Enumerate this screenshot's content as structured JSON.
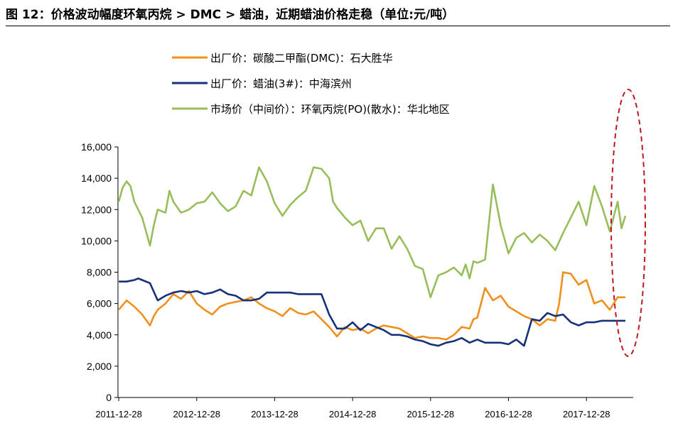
{
  "figure": {
    "title": "图 12：价格波动幅度环氧丙烷 > DMC > 蜡油，近期蜡油价格走稳（单位:元/吨）"
  },
  "colors": {
    "dmc": "#F0901C",
    "wax": "#17307A",
    "po": "#97BE5A",
    "highlight": "#C0181E"
  },
  "chart_data": {
    "type": "line",
    "title": "",
    "xlabel": "",
    "ylabel": "",
    "ylim": [
      0,
      16000
    ],
    "yticks": [
      0,
      2000,
      4000,
      6000,
      8000,
      10000,
      12000,
      14000,
      16000
    ],
    "ytick_labels": [
      "0",
      "2,000",
      "4,000",
      "6,000",
      "8,000",
      "10,000",
      "12,000",
      "14,000",
      "16,000"
    ],
    "xlim": [
      2011.99,
      2018.6
    ],
    "xticks": [
      2012,
      2013,
      2014,
      2015,
      2016,
      2017,
      2018
    ],
    "xtick_labels": [
      "2011-12-28",
      "2012-12-28",
      "2013-12-28",
      "2014-12-28",
      "2015-12-28",
      "2016-12-28",
      "2017-12-28"
    ],
    "legend_position": "top-left",
    "series": [
      {
        "key": "dmc",
        "name": "出厂价：碳酸二甲酯(DMC)：石大胜华",
        "x": [
          2012.0,
          2012.1,
          2012.2,
          2012.3,
          2012.4,
          2012.45,
          2012.5,
          2012.6,
          2012.7,
          2012.8,
          2012.9,
          2013.0,
          2013.1,
          2013.2,
          2013.3,
          2013.4,
          2013.5,
          2013.6,
          2013.7,
          2013.8,
          2013.9,
          2014.0,
          2014.1,
          2014.2,
          2014.3,
          2014.4,
          2014.5,
          2014.6,
          2014.7,
          2014.8,
          2014.9,
          2015.0,
          2015.1,
          2015.2,
          2015.3,
          2015.4,
          2015.5,
          2015.6,
          2015.7,
          2015.8,
          2015.9,
          2016.0,
          2016.1,
          2016.2,
          2016.3,
          2016.4,
          2016.5,
          2016.55,
          2016.6,
          2016.7,
          2016.8,
          2016.9,
          2017.0,
          2017.1,
          2017.2,
          2017.3,
          2017.4,
          2017.5,
          2017.6,
          2017.65,
          2017.7,
          2017.8,
          2017.9,
          2018.0,
          2018.1,
          2018.2,
          2018.3,
          2018.4,
          2018.5
        ],
        "values": [
          5600,
          6200,
          5800,
          5300,
          4600,
          5200,
          5600,
          6000,
          6600,
          6300,
          6800,
          6000,
          5600,
          5300,
          5800,
          6000,
          6100,
          6200,
          6400,
          6000,
          5700,
          5500,
          5200,
          5700,
          5400,
          5300,
          5500,
          5000,
          4500,
          3900,
          4500,
          4300,
          4400,
          4100,
          4400,
          4600,
          4500,
          4400,
          4100,
          3800,
          3900,
          3800,
          3800,
          3700,
          4000,
          4500,
          4400,
          5000,
          5100,
          7000,
          6200,
          6500,
          5800,
          5500,
          5200,
          5000,
          4600,
          5000,
          4900,
          6000,
          8000,
          7900,
          7200,
          7500,
          6000,
          6200,
          5600,
          6400,
          6400
        ]
      },
      {
        "key": "wax",
        "name": "出厂价：蜡油(3#)：中海滨州",
        "x": [
          2012.0,
          2012.1,
          2012.2,
          2012.25,
          2012.3,
          2012.4,
          2012.5,
          2012.6,
          2012.7,
          2012.8,
          2012.9,
          2013.0,
          2013.1,
          2013.2,
          2013.3,
          2013.4,
          2013.5,
          2013.6,
          2013.7,
          2013.8,
          2013.9,
          2014.0,
          2014.1,
          2014.2,
          2014.3,
          2014.4,
          2014.5,
          2014.6,
          2014.7,
          2014.8,
          2014.9,
          2015.0,
          2015.1,
          2015.2,
          2015.3,
          2015.4,
          2015.5,
          2015.6,
          2015.7,
          2015.8,
          2015.9,
          2016.0,
          2016.1,
          2016.2,
          2016.3,
          2016.4,
          2016.5,
          2016.6,
          2016.7,
          2016.8,
          2016.9,
          2017.0,
          2017.1,
          2017.2,
          2017.3,
          2017.4,
          2017.5,
          2017.6,
          2017.7,
          2017.8,
          2017.9,
          2018.0,
          2018.1,
          2018.2,
          2018.3,
          2018.4,
          2018.5
        ],
        "values": [
          7400,
          7400,
          7500,
          7600,
          7500,
          7300,
          6200,
          6500,
          6700,
          6800,
          6700,
          6800,
          6600,
          6700,
          6900,
          6600,
          6500,
          6200,
          6200,
          6300,
          6700,
          6700,
          6700,
          6700,
          6600,
          6600,
          6600,
          6600,
          5300,
          4400,
          4400,
          4800,
          4300,
          4700,
          4500,
          4300,
          4000,
          4000,
          3900,
          3700,
          3600,
          3400,
          3300,
          3500,
          3600,
          3800,
          3500,
          3700,
          3500,
          3500,
          3500,
          3400,
          3700,
          3300,
          5000,
          4900,
          5400,
          5200,
          5300,
          4800,
          4600,
          4800,
          4800,
          4900,
          4900,
          4900,
          4900
        ]
      },
      {
        "key": "po",
        "name": "市场价（中间价）：环氧丙烷(PO)(散水)：华北地区",
        "x": [
          2012.0,
          2012.05,
          2012.1,
          2012.15,
          2012.2,
          2012.3,
          2012.4,
          2012.45,
          2012.5,
          2012.6,
          2012.65,
          2012.7,
          2012.8,
          2012.9,
          2013.0,
          2013.1,
          2013.2,
          2013.3,
          2013.4,
          2013.5,
          2013.6,
          2013.7,
          2013.8,
          2013.9,
          2014.0,
          2014.1,
          2014.2,
          2014.3,
          2014.4,
          2014.5,
          2014.6,
          2014.7,
          2014.75,
          2014.8,
          2014.9,
          2015.0,
          2015.1,
          2015.2,
          2015.3,
          2015.4,
          2015.5,
          2015.6,
          2015.7,
          2015.8,
          2015.9,
          2016.0,
          2016.1,
          2016.2,
          2016.3,
          2016.4,
          2016.45,
          2016.5,
          2016.55,
          2016.6,
          2016.7,
          2016.8,
          2016.9,
          2017.0,
          2017.1,
          2017.2,
          2017.3,
          2017.4,
          2017.5,
          2017.6,
          2017.7,
          2017.8,
          2017.9,
          2018.0,
          2018.1,
          2018.2,
          2018.3,
          2018.4,
          2018.45,
          2018.5
        ],
        "values": [
          12500,
          13400,
          13800,
          13500,
          12500,
          11500,
          9700,
          11000,
          12000,
          11800,
          13200,
          12500,
          11800,
          12000,
          12400,
          12500,
          13100,
          12400,
          11900,
          12200,
          13200,
          12900,
          14700,
          13800,
          12400,
          11600,
          12300,
          12800,
          13200,
          14700,
          14600,
          14000,
          12500,
          12100,
          11500,
          11000,
          11300,
          10000,
          10800,
          10800,
          9500,
          10300,
          9500,
          8400,
          8200,
          6400,
          7800,
          8000,
          8300,
          7800,
          8500,
          7600,
          8700,
          8600,
          8800,
          13600,
          11000,
          9200,
          10200,
          10500,
          9900,
          10400,
          10000,
          9400,
          10500,
          11500,
          12500,
          11000,
          13500,
          12200,
          10600,
          12500,
          10800,
          11600
        ]
      }
    ]
  }
}
